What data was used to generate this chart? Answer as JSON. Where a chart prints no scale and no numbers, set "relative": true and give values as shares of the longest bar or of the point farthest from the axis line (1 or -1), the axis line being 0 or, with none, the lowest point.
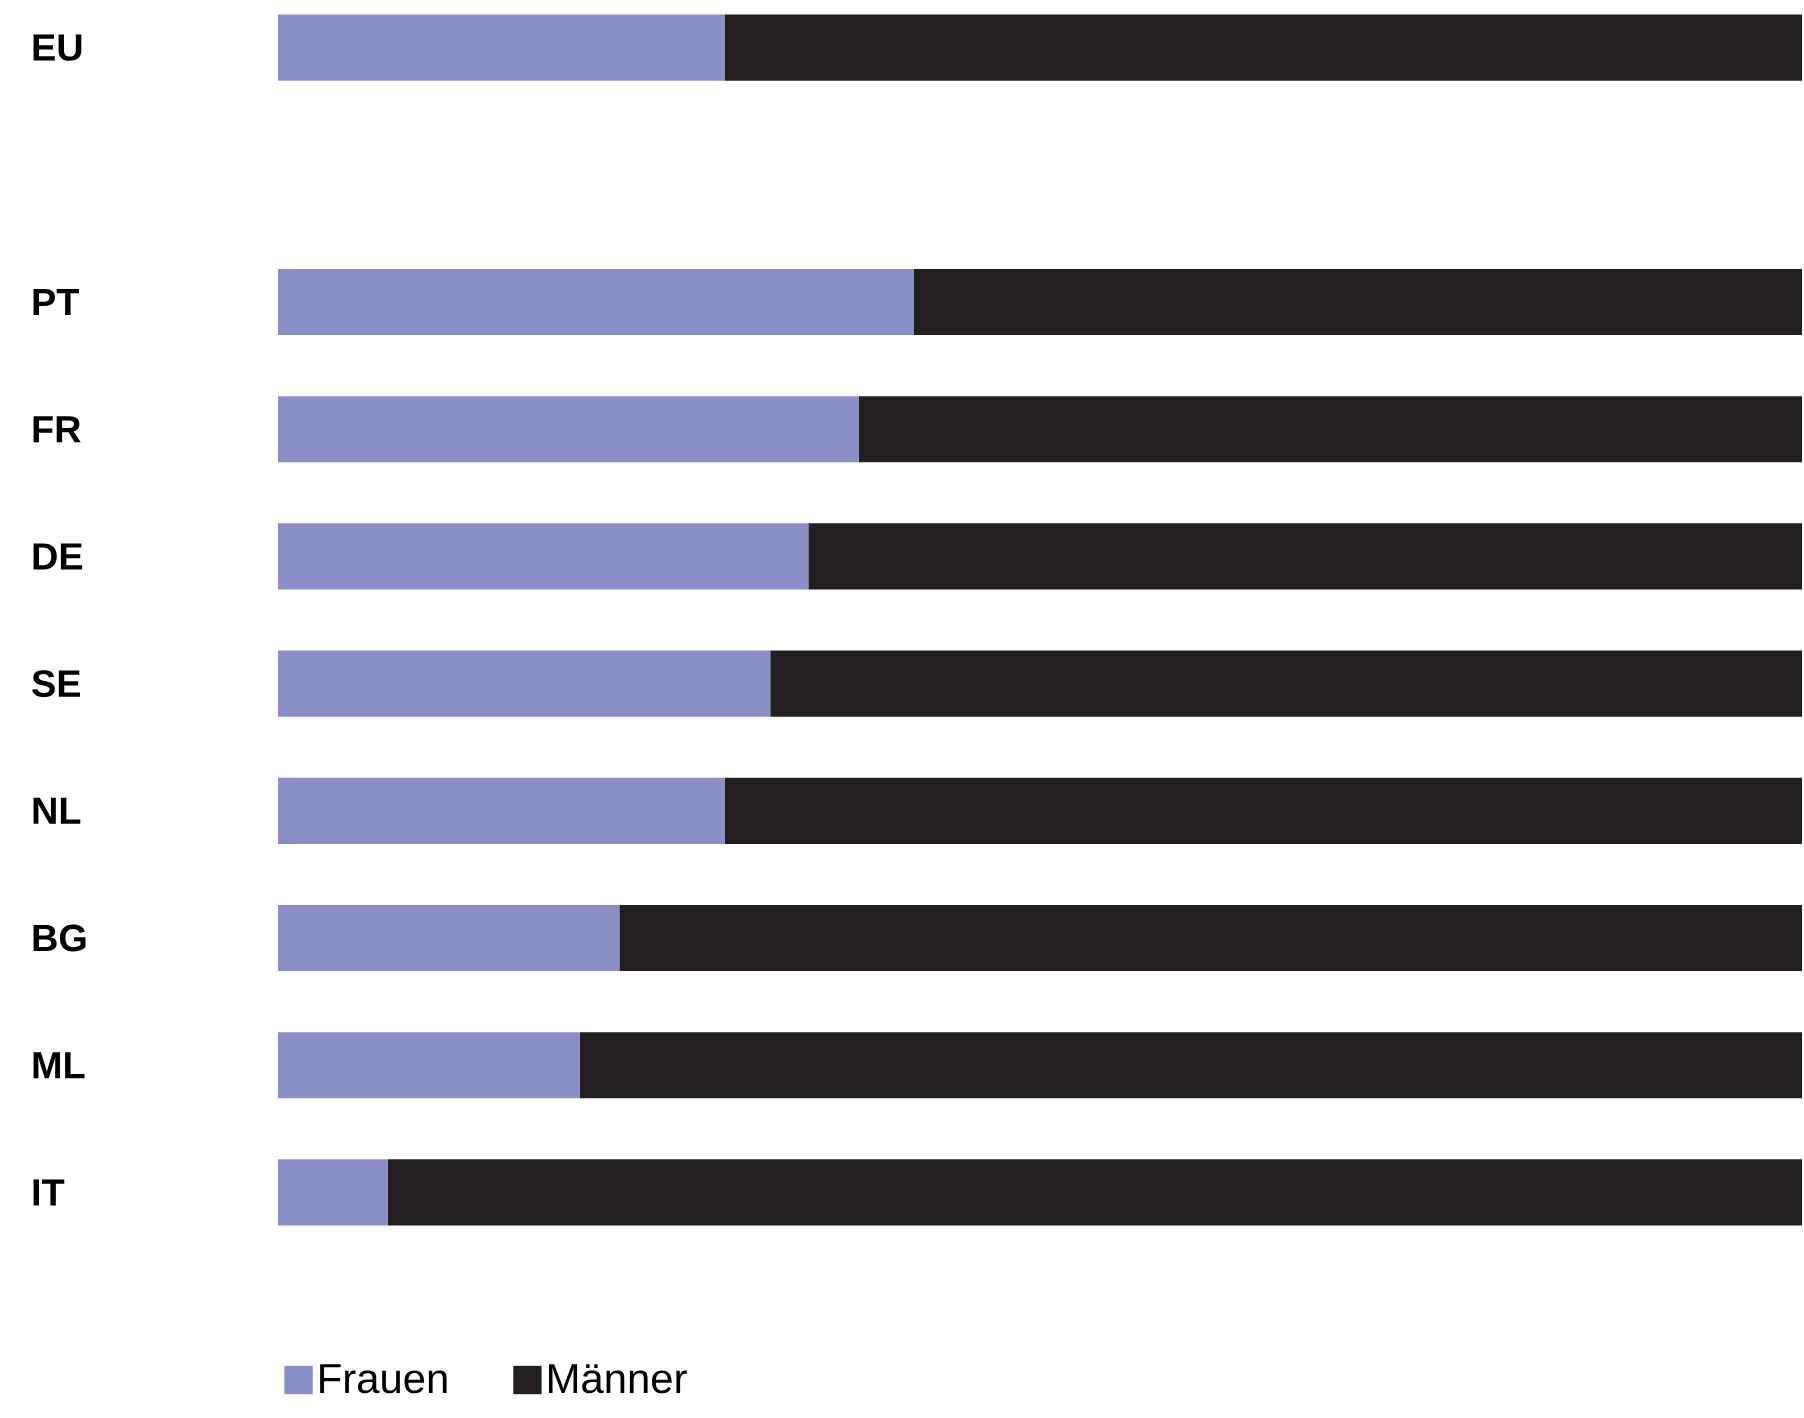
{
  "chart_data": {
    "type": "bar",
    "orientation": "horizontal",
    "stacked": true,
    "relative": true,
    "legend": "bottom",
    "categories": [
      "EU",
      null,
      "PT",
      "FR",
      "DE",
      "SE",
      "NL",
      "BG",
      "ML",
      "IT"
    ],
    "series": [
      {
        "name": "Frauen",
        "color": "#8a8fc7",
        "values": [
          0.293,
          null,
          0.417,
          0.381,
          0.348,
          0.323,
          0.293,
          0.224,
          0.198,
          0.072
        ]
      },
      {
        "name": "Männer",
        "color": "#231f20",
        "values": [
          0.707,
          null,
          0.583,
          0.619,
          0.652,
          0.677,
          0.707,
          0.776,
          0.802,
          0.928
        ]
      }
    ]
  }
}
